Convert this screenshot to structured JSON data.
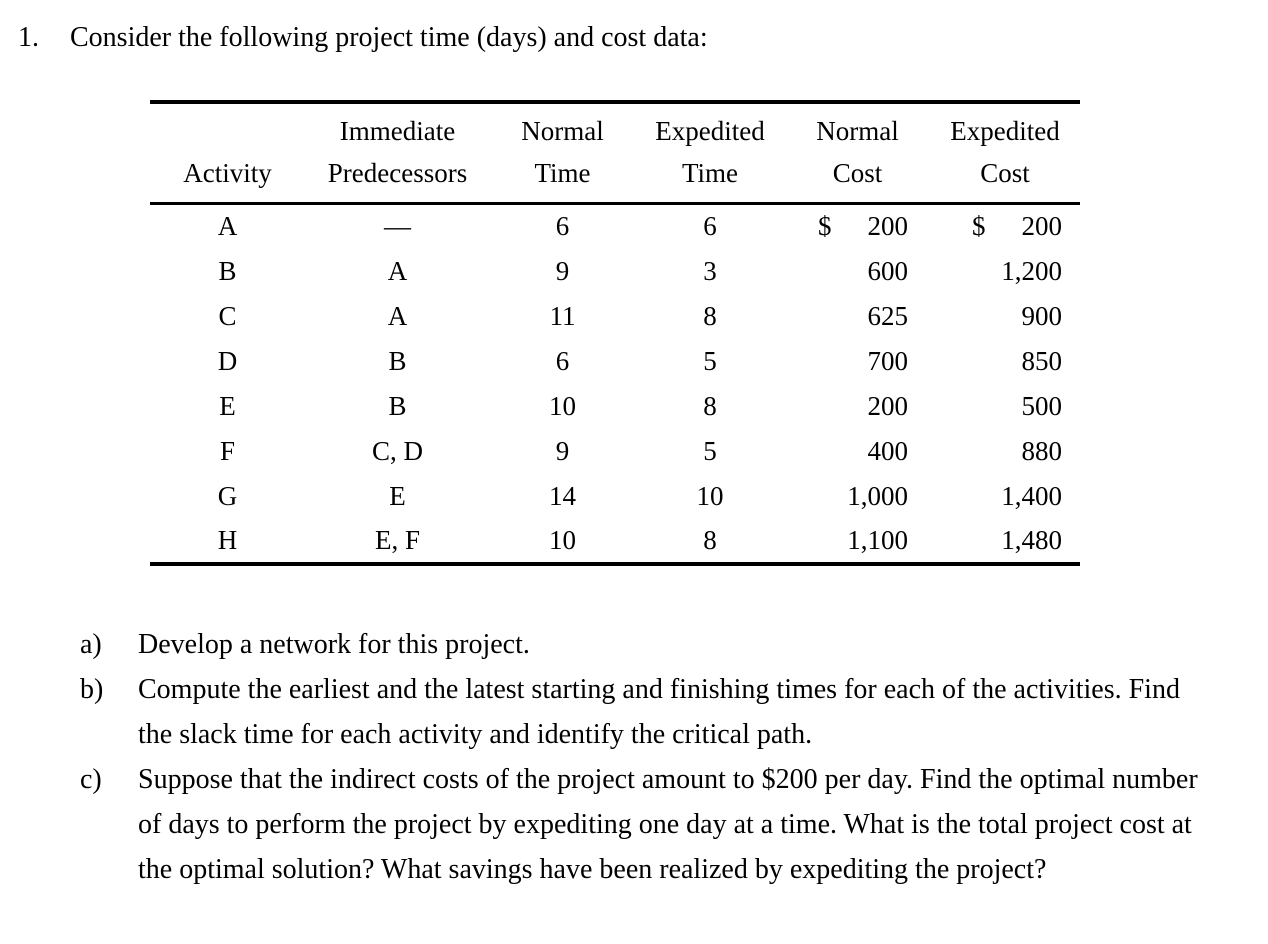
{
  "page": {
    "number": "1.",
    "title": "Consider the following project time (days) and cost data:"
  },
  "table": {
    "headers": [
      {
        "line1": "",
        "line2": "Activity"
      },
      {
        "line1": "Immediate",
        "line2": "Predecessors"
      },
      {
        "line1": "Normal",
        "line2": "Time"
      },
      {
        "line1": "Expedited",
        "line2": "Time"
      },
      {
        "line1": "Normal",
        "line2": "Cost"
      },
      {
        "line1": "Expedited",
        "line2": "Cost"
      }
    ],
    "rows": [
      {
        "activity": "A",
        "predecessors": "—",
        "normal_time": "6",
        "expedited_time": "6",
        "normal_cost": "200",
        "expedited_cost": "200",
        "show_dollar": true
      },
      {
        "activity": "B",
        "predecessors": "A",
        "normal_time": "9",
        "expedited_time": "3",
        "normal_cost": "600",
        "expedited_cost": "1,200",
        "show_dollar": false
      },
      {
        "activity": "C",
        "predecessors": "A",
        "normal_time": "11",
        "expedited_time": "8",
        "normal_cost": "625",
        "expedited_cost": "900",
        "show_dollar": false
      },
      {
        "activity": "D",
        "predecessors": "B",
        "normal_time": "6",
        "expedited_time": "5",
        "normal_cost": "700",
        "expedited_cost": "850",
        "show_dollar": false
      },
      {
        "activity": "E",
        "predecessors": "B",
        "normal_time": "10",
        "expedited_time": "8",
        "normal_cost": "200",
        "expedited_cost": "500",
        "show_dollar": false
      },
      {
        "activity": "F",
        "predecessors": "C, D",
        "normal_time": "9",
        "expedited_time": "5",
        "normal_cost": "400",
        "expedited_cost": "880",
        "show_dollar": false
      },
      {
        "activity": "G",
        "predecessors": "E",
        "normal_time": "14",
        "expedited_time": "10",
        "normal_cost": "1,000",
        "expedited_cost": "1,400",
        "show_dollar": false
      },
      {
        "activity": "H",
        "predecessors": "E, F",
        "normal_time": "10",
        "expedited_time": "8",
        "normal_cost": "1,100",
        "expedited_cost": "1,480",
        "show_dollar": false
      }
    ]
  },
  "questions": {
    "items": [
      {
        "label": "a)",
        "text": "Develop a network for this project."
      },
      {
        "label": "b)",
        "text": "Compute the earliest and the latest starting and finishing times for each of the activities. Find the slack time for each activity and identify the critical path."
      },
      {
        "label": "c)",
        "text": "Suppose that the indirect costs of the project amount to $200 per day. Find the optimal number of days to perform the project by expediting one day at a time. What is the total project cost at the optimal solution? What savings have been realized by expediting the project?"
      }
    ]
  }
}
